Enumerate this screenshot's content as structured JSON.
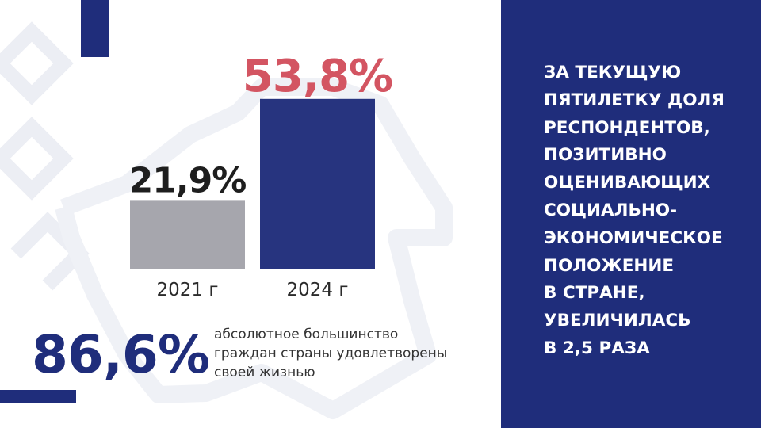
{
  "colors": {
    "brand_blue": "#1f2d7b",
    "bar_2021": "#a6a6ad",
    "bar_2024": "#27347f",
    "label_2021": "#1e1e1e",
    "label_2024": "#d35562"
  },
  "chart_data": {
    "type": "bar",
    "categories": [
      "2021 г",
      "2024 г"
    ],
    "values": [
      21.9,
      53.8
    ],
    "value_labels": [
      "21,9%",
      "53,8%"
    ],
    "ylim": [
      0,
      60
    ],
    "grid": false
  },
  "right_panel": {
    "text": "ЗА ТЕКУЩУЮ\nПЯТИЛЕТКУ ДОЛЯ\nРЕСПОНДЕНТОВ,\nПОЗИТИВНО\nОЦЕНИВАЮЩИХ\nСОЦИАЛЬНО-\nЭКОНОМИЧЕСКОЕ\nПОЛОЖЕНИЕ\nВ СТРАНЕ,\nУВЕЛИЧИЛАСЬ\nВ 2,5 РАЗА"
  },
  "stat": {
    "value": "86,6%",
    "caption": "абсолютное большинство\nграждан страны удовлетворены\nсвоей жизнью"
  }
}
